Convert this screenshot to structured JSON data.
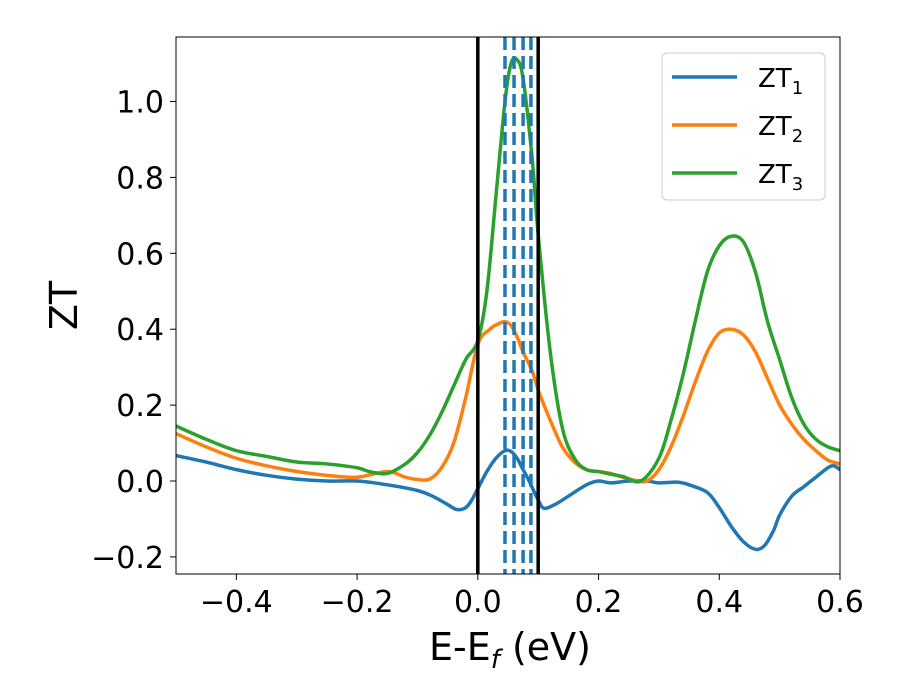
{
  "chart_data": {
    "type": "line",
    "title": "",
    "xlabel": {
      "main": "E-E",
      "sub": "f",
      "unit": " (eV)"
    },
    "ylabel": "ZT",
    "xlim": [
      -0.5,
      0.6
    ],
    "ylim": [
      -0.245,
      1.17
    ],
    "xticks": [
      {
        "value": -0.4,
        "label": "−0.4"
      },
      {
        "value": -0.2,
        "label": "−0.2"
      },
      {
        "value": 0.0,
        "label": "0.0"
      },
      {
        "value": 0.2,
        "label": "0.2"
      },
      {
        "value": 0.4,
        "label": "0.4"
      },
      {
        "value": 0.6,
        "label": "0.6"
      }
    ],
    "yticks": [
      {
        "value": -0.2,
        "label": "−0.2"
      },
      {
        "value": 0.0,
        "label": "0.0"
      },
      {
        "value": 0.2,
        "label": "0.2"
      },
      {
        "value": 0.4,
        "label": "0.4"
      },
      {
        "value": 0.6,
        "label": "0.6"
      },
      {
        "value": 0.8,
        "label": "0.8"
      },
      {
        "value": 1.0,
        "label": "1.0"
      }
    ],
    "grid": false,
    "legend_position": "top-right",
    "vlines_solid": [
      0.0,
      0.1
    ],
    "vlines_dashed": [
      0.045,
      0.06,
      0.075,
      0.088
    ],
    "vline_solid_color": "#000000",
    "vline_dashed_color": "#1f77b4",
    "series": [
      {
        "name": {
          "main": "ZT",
          "sub": "1"
        },
        "color": "#1f77b4",
        "x": [
          -0.5,
          -0.45,
          -0.4,
          -0.35,
          -0.3,
          -0.25,
          -0.2,
          -0.15,
          -0.1,
          -0.075,
          -0.05,
          -0.035,
          -0.02,
          -0.01,
          0.0,
          0.015,
          0.03,
          0.045,
          0.055,
          0.065,
          0.075,
          0.085,
          0.1,
          0.11,
          0.13,
          0.15,
          0.18,
          0.2,
          0.22,
          0.25,
          0.28,
          0.3,
          0.33,
          0.35,
          0.38,
          0.4,
          0.42,
          0.44,
          0.46,
          0.475,
          0.49,
          0.5,
          0.52,
          0.54,
          0.56,
          0.58,
          0.59,
          0.6
        ],
        "y": [
          0.067,
          0.05,
          0.03,
          0.015,
          0.005,
          0.0,
          0.0,
          -0.01,
          -0.025,
          -0.04,
          -0.062,
          -0.075,
          -0.07,
          -0.05,
          -0.02,
          0.025,
          0.06,
          0.08,
          0.078,
          0.06,
          0.03,
          0.0,
          -0.05,
          -0.072,
          -0.06,
          -0.04,
          -0.01,
          0.0,
          -0.005,
          0.0,
          0.0,
          -0.005,
          -0.003,
          -0.01,
          -0.03,
          -0.07,
          -0.12,
          -0.16,
          -0.18,
          -0.17,
          -0.13,
          -0.09,
          -0.04,
          -0.015,
          0.01,
          0.035,
          0.04,
          0.03
        ]
      },
      {
        "name": {
          "main": "ZT",
          "sub": "2"
        },
        "color": "#ff7f0e",
        "x": [
          -0.5,
          -0.45,
          -0.4,
          -0.35,
          -0.3,
          -0.25,
          -0.2,
          -0.15,
          -0.12,
          -0.1,
          -0.08,
          -0.06,
          -0.04,
          -0.02,
          0.0,
          0.02,
          0.035,
          0.045,
          0.055,
          0.065,
          0.075,
          0.09,
          0.1,
          0.12,
          0.14,
          0.16,
          0.18,
          0.2,
          0.22,
          0.24,
          0.26,
          0.28,
          0.3,
          0.32,
          0.34,
          0.36,
          0.38,
          0.4,
          0.42,
          0.44,
          0.46,
          0.48,
          0.5,
          0.52,
          0.54,
          0.56,
          0.58,
          0.6
        ],
        "y": [
          0.125,
          0.09,
          0.06,
          0.04,
          0.025,
          0.015,
          0.01,
          0.025,
          0.01,
          0.004,
          0.005,
          0.035,
          0.1,
          0.22,
          0.36,
          0.4,
          0.415,
          0.42,
          0.41,
          0.38,
          0.34,
          0.29,
          0.24,
          0.16,
          0.09,
          0.05,
          0.03,
          0.025,
          0.02,
          0.01,
          0.002,
          0.0,
          0.03,
          0.09,
          0.17,
          0.26,
          0.34,
          0.39,
          0.4,
          0.385,
          0.34,
          0.27,
          0.2,
          0.15,
          0.11,
          0.08,
          0.055,
          0.045
        ]
      },
      {
        "name": {
          "main": "ZT",
          "sub": "3"
        },
        "color": "#2ca02c",
        "x": [
          -0.5,
          -0.45,
          -0.4,
          -0.35,
          -0.3,
          -0.25,
          -0.2,
          -0.18,
          -0.15,
          -0.12,
          -0.1,
          -0.08,
          -0.06,
          -0.04,
          -0.02,
          0.0,
          0.015,
          0.03,
          0.045,
          0.055,
          0.065,
          0.075,
          0.09,
          0.1,
          0.12,
          0.14,
          0.16,
          0.18,
          0.2,
          0.22,
          0.24,
          0.27,
          0.3,
          0.32,
          0.34,
          0.36,
          0.38,
          0.4,
          0.42,
          0.44,
          0.46,
          0.48,
          0.5,
          0.52,
          0.54,
          0.56,
          0.58,
          0.6
        ],
        "y": [
          0.145,
          0.11,
          0.08,
          0.065,
          0.05,
          0.045,
          0.035,
          0.025,
          0.02,
          0.045,
          0.075,
          0.12,
          0.18,
          0.25,
          0.32,
          0.37,
          0.5,
          0.75,
          1.0,
          1.1,
          1.11,
          1.06,
          0.85,
          0.65,
          0.34,
          0.14,
          0.06,
          0.03,
          0.025,
          0.018,
          0.012,
          0.0,
          0.06,
          0.16,
          0.28,
          0.42,
          0.55,
          0.62,
          0.645,
          0.63,
          0.55,
          0.42,
          0.32,
          0.22,
          0.15,
          0.11,
          0.09,
          0.08
        ]
      }
    ]
  }
}
